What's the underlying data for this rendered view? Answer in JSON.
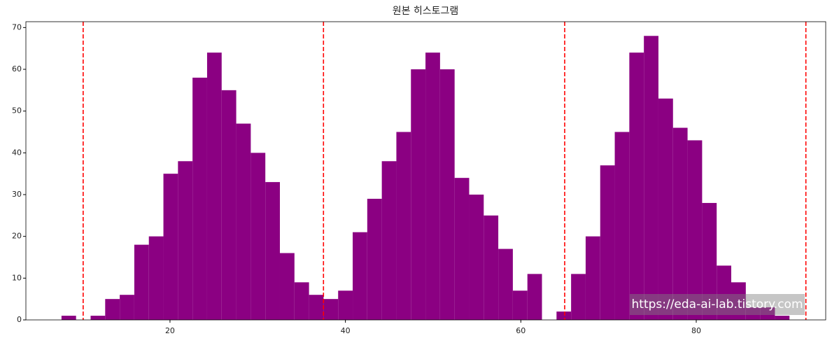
{
  "chart_data": {
    "type": "histogram",
    "title": "원본 히스토그램",
    "bins": [
      7.63,
      9.29,
      10.95,
      12.61,
      14.27,
      15.93,
      17.59,
      19.25,
      20.91,
      22.57,
      24.23,
      25.89,
      27.55,
      29.21,
      30.87,
      32.53,
      34.19,
      35.85,
      37.51,
      39.17,
      40.83,
      42.49,
      44.15,
      45.81,
      47.47,
      49.13,
      50.79,
      52.45,
      54.11,
      55.77,
      57.43,
      59.09,
      60.75,
      62.41,
      64.07,
      65.73,
      67.39,
      69.05,
      70.71,
      72.37,
      74.03,
      75.69,
      77.35,
      79.01,
      80.67,
      82.33,
      83.99,
      85.65,
      87.31,
      88.97,
      90.63
    ],
    "values": [
      1,
      0,
      1,
      5,
      6,
      18,
      20,
      35,
      38,
      58,
      64,
      55,
      47,
      40,
      33,
      16,
      9,
      6,
      5,
      7,
      21,
      29,
      38,
      45,
      60,
      64,
      60,
      34,
      30,
      25,
      17,
      7,
      11,
      0,
      2,
      11,
      20,
      37,
      45,
      64,
      68,
      53,
      46,
      43,
      28,
      13,
      9,
      3,
      3,
      1
    ],
    "color": "#8b0082",
    "vlines": [
      10.1,
      37.5,
      65.0,
      92.5
    ],
    "vline_color": "#ff0000",
    "xlim": [
      3.57,
      94.76
    ],
    "xticks": [
      20,
      40,
      60,
      80
    ],
    "ylim": [
      0,
      71.4
    ],
    "yticks": [
      0,
      10,
      20,
      30,
      40,
      50,
      60,
      70
    ],
    "watermark": "https://eda-ai-lab.tistory.com"
  }
}
